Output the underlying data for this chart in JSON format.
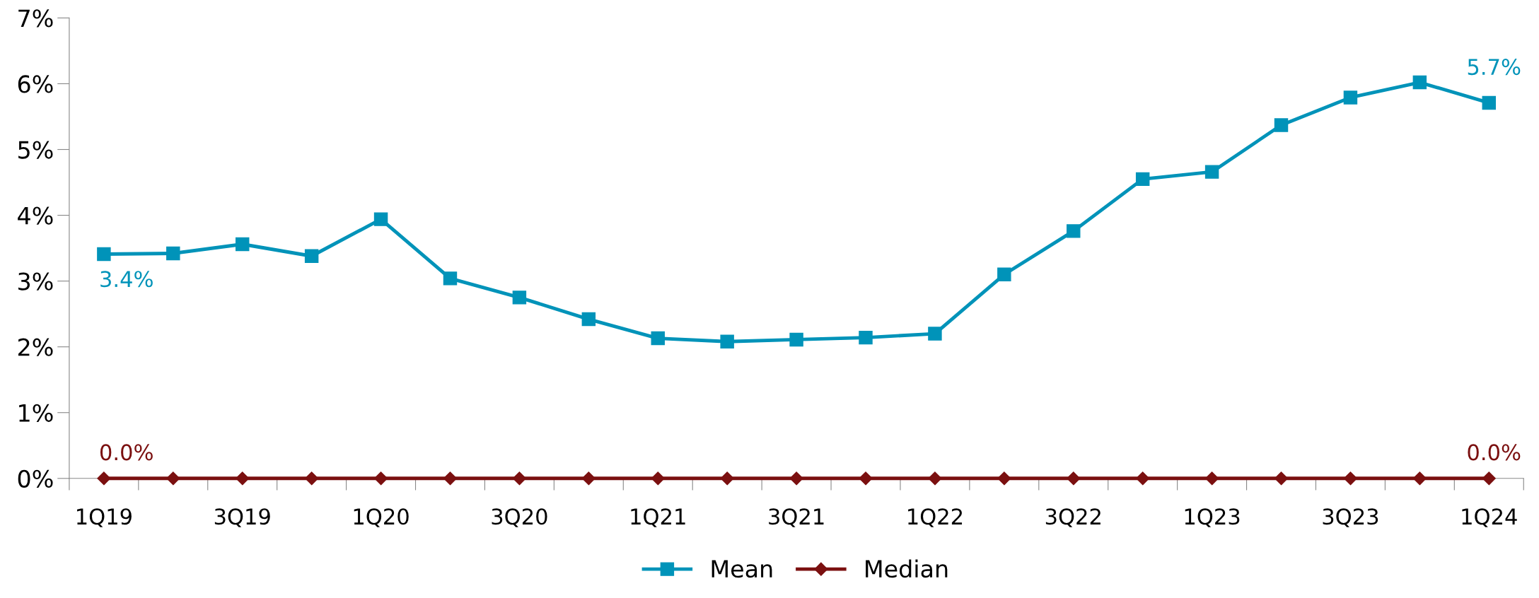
{
  "chart_data": {
    "type": "line",
    "categories": [
      "1Q19",
      null,
      "3Q19",
      null,
      "1Q20",
      null,
      "3Q20",
      null,
      "1Q21",
      null,
      "3Q21",
      null,
      "1Q22",
      null,
      "3Q22",
      null,
      "1Q23",
      null,
      "3Q23",
      null,
      "1Q24"
    ],
    "series": [
      {
        "name": "Mean",
        "color": "#0093b9",
        "marker": "square",
        "values": [
          3.41,
          3.42,
          3.56,
          3.38,
          3.94,
          3.04,
          2.75,
          2.42,
          2.13,
          2.08,
          2.11,
          2.14,
          2.2,
          3.1,
          3.76,
          4.55,
          4.66,
          5.37,
          5.79,
          6.02,
          5.71
        ],
        "value_labels": [
          "3.4%",
          null,
          null,
          null,
          null,
          null,
          null,
          null,
          null,
          null,
          null,
          null,
          null,
          null,
          null,
          null,
          null,
          null,
          null,
          null,
          "5.7%"
        ]
      },
      {
        "name": "Median",
        "color": "#7b1010",
        "marker": "diamond",
        "values": [
          0,
          0,
          0,
          0,
          0,
          0,
          0,
          0,
          0,
          0,
          0,
          0,
          0,
          0,
          0,
          0,
          0,
          0,
          0,
          0,
          0
        ],
        "value_labels": [
          "0.0%",
          null,
          null,
          null,
          null,
          null,
          null,
          null,
          null,
          null,
          null,
          null,
          null,
          null,
          null,
          null,
          null,
          null,
          null,
          null,
          "0.0%"
        ]
      }
    ],
    "ylim": [
      0,
      7
    ],
    "yticks": [
      {
        "value": 0,
        "label": "0%"
      },
      {
        "value": 1,
        "label": "1%"
      },
      {
        "value": 2,
        "label": "2%"
      },
      {
        "value": 3,
        "label": "3%"
      },
      {
        "value": 4,
        "label": "4%"
      },
      {
        "value": 5,
        "label": "5%"
      },
      {
        "value": 6,
        "label": "6%"
      },
      {
        "value": 7,
        "label": "7%"
      }
    ],
    "grid": false,
    "legend": "bottom",
    "line_style": "solid"
  }
}
